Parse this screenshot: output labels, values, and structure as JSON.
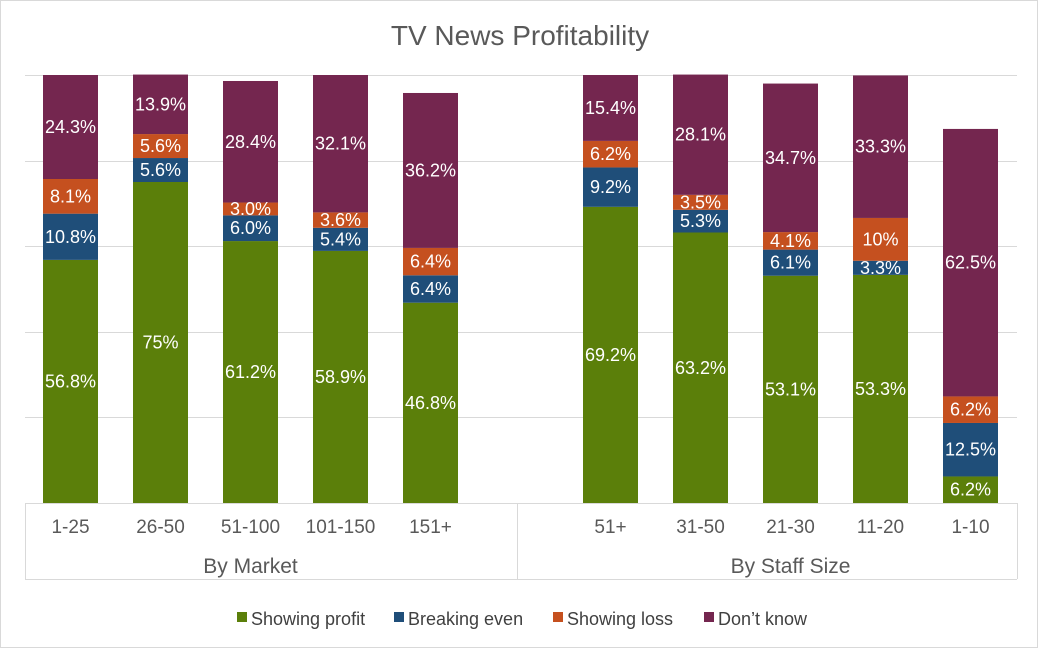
{
  "chart_data": {
    "type": "bar",
    "stacked": true,
    "title": "TV News Profitability",
    "xlabel": "",
    "ylabel": "",
    "ylim": [
      0,
      100
    ],
    "grid": true,
    "legend_position": "bottom",
    "groups": [
      {
        "label": "By Market",
        "categories": [
          "1-25",
          "26-50",
          "51-100",
          "101-150",
          "151+"
        ],
        "series": [
          {
            "name": "Showing profit",
            "values": [
              56.8,
              75,
              61.2,
              58.9,
              46.8
            ],
            "labels": [
              "56.8%",
              "75%",
              "61.2%",
              "58.9%",
              "46.8%"
            ]
          },
          {
            "name": "Breaking even",
            "values": [
              10.8,
              5.6,
              6.0,
              5.4,
              6.4
            ],
            "labels": [
              "10.8%",
              "5.6%",
              "6.0%",
              "5.4%",
              "6.4%"
            ]
          },
          {
            "name": "Showing loss",
            "values": [
              8.1,
              5.6,
              3.0,
              3.6,
              6.4
            ],
            "labels": [
              "8.1%",
              "5.6%",
              "3.0%",
              "3.6%",
              "6.4%"
            ]
          },
          {
            "name": "Don’t know",
            "values": [
              24.3,
              13.9,
              28.4,
              32.1,
              36.2
            ],
            "labels": [
              "24.3%",
              "13.9%",
              "28.4%",
              "32.1%",
              "36.2%"
            ]
          }
        ]
      },
      {
        "label": "By Staff Size",
        "categories": [
          "51+",
          "31-50",
          "21-30",
          "11-20",
          "1-10"
        ],
        "series": [
          {
            "name": "Showing profit",
            "values": [
              69.2,
              63.2,
              53.1,
              53.3,
              6.2
            ],
            "labels": [
              "69.2%",
              "63.2%",
              "53.1%",
              "53.3%",
              "6.2%"
            ]
          },
          {
            "name": "Breaking even",
            "values": [
              9.2,
              5.3,
              6.1,
              3.3,
              12.5
            ],
            "labels": [
              "9.2%",
              "5.3%",
              "6.1%",
              "3.3%",
              "12.5%"
            ]
          },
          {
            "name": "Showing loss",
            "values": [
              6.2,
              3.5,
              4.1,
              10,
              6.2
            ],
            "labels": [
              "6.2%",
              "3.5%",
              "4.1%",
              "10%",
              "6.2%"
            ]
          },
          {
            "name": "Don’t know",
            "values": [
              15.4,
              28.1,
              34.7,
              33.3,
              62.5
            ],
            "labels": [
              "15.4%",
              "28.1%",
              "34.7%",
              "33.3%",
              "62.5%"
            ]
          }
        ]
      }
    ],
    "colors": {
      "Showing profit": "#5b7f0a",
      "Breaking even": "#1f4e79",
      "Showing loss": "#c5501f",
      "Don’t know": "#74264f"
    }
  }
}
